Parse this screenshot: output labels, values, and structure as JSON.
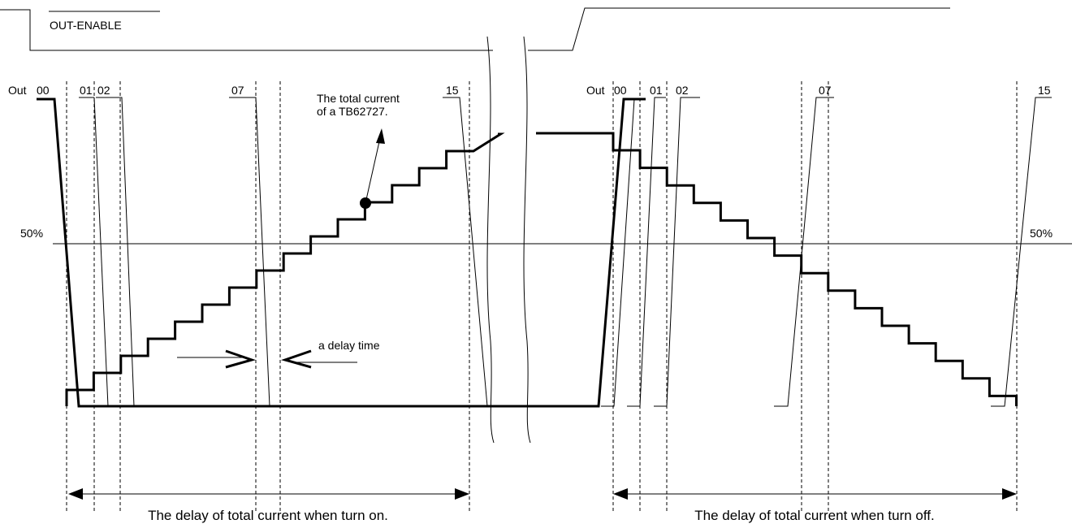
{
  "signal": {
    "label": "OUT-ENABLE"
  },
  "left": {
    "out": "Out",
    "outputs": [
      "00",
      "01",
      "02",
      "07",
      "15"
    ],
    "level": "50%",
    "annotation": [
      "The total current",
      "of a TB62727."
    ],
    "delay": "a delay time",
    "caption": "The delay of total current when turn on."
  },
  "right": {
    "out": "Out",
    "outputs": [
      "00",
      "01",
      "02",
      "07",
      "15"
    ],
    "level": "50%",
    "caption": "The delay of total current when turn off."
  }
}
